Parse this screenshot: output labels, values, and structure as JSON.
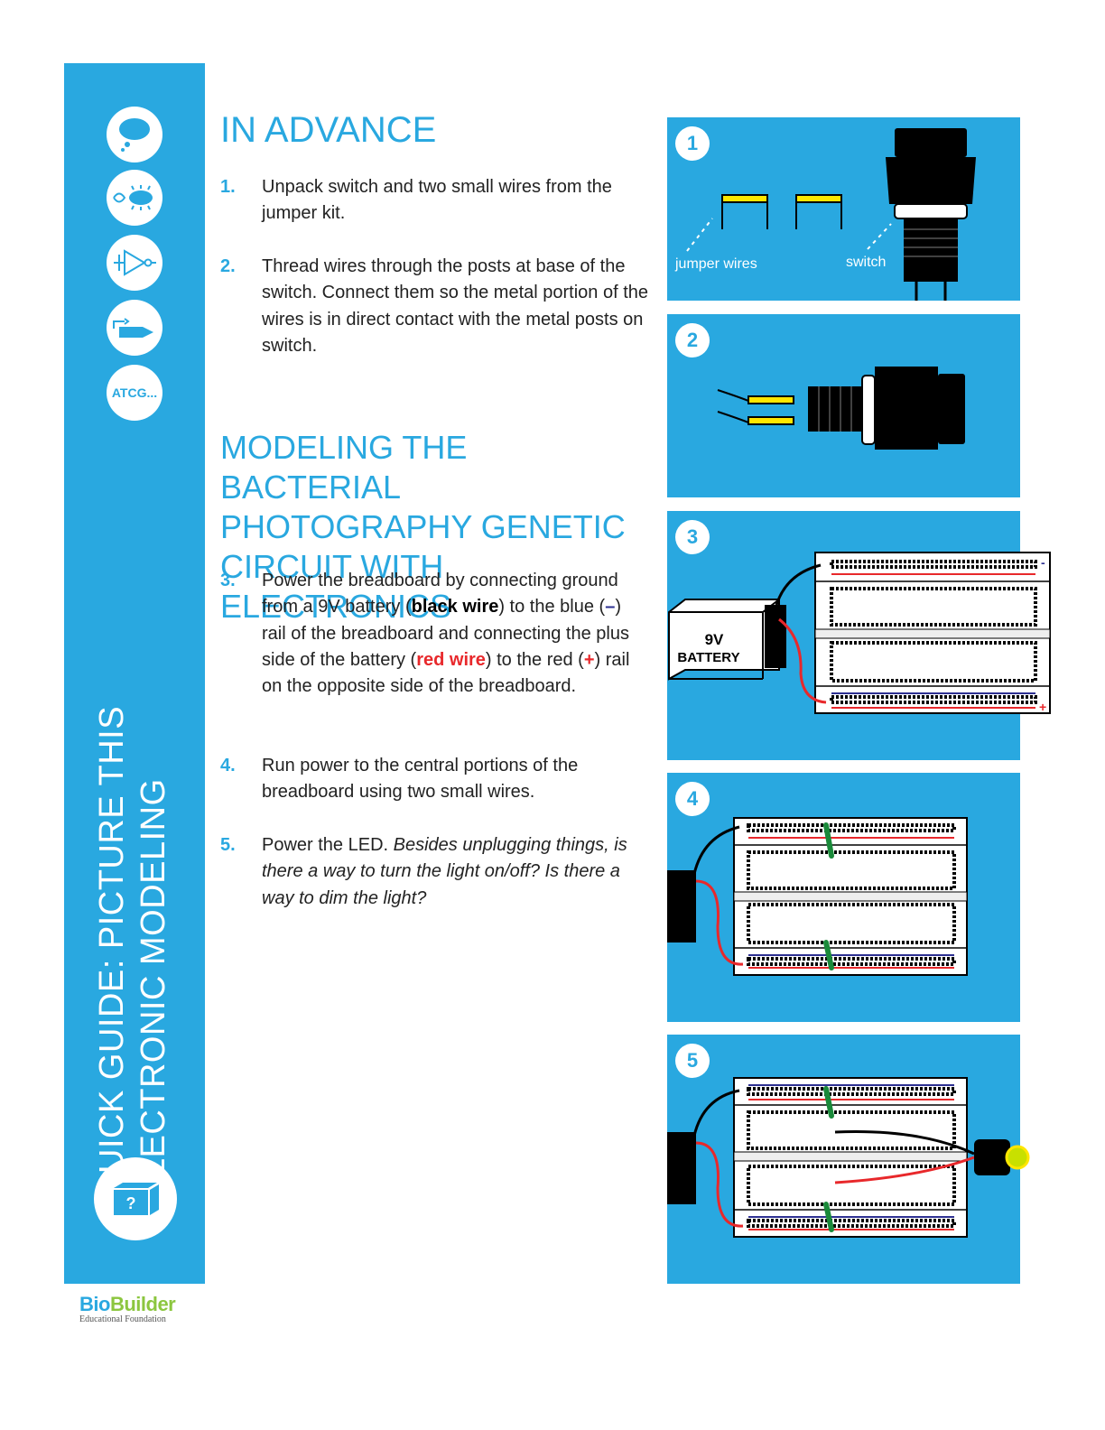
{
  "sidebar": {
    "title_line1": "QUICK GUIDE: PICTURE THIS",
    "title_line2": "ELECTRONIC MODELING",
    "atcg_label": "ATCG...",
    "icons": [
      "thought-bubble-icon",
      "bacteria-icon",
      "logic-gate-icon",
      "plug-icon",
      "atcg-icon",
      "mystery-box-icon"
    ],
    "mystery_box_mark": "?"
  },
  "logo": {
    "name_part1": "Bio",
    "name_part2": "Builder",
    "subtitle": "Educational Foundation"
  },
  "section1": {
    "heading": "IN ADVANCE",
    "steps": [
      {
        "num": "1.",
        "text": " Unpack switch and two small wires from the jumper kit."
      },
      {
        "num": "2.",
        "text": "Thread wires through the posts at base of the switch. Connect them so the metal portion of the wires is in direct contact with the metal posts on switch."
      }
    ]
  },
  "section2": {
    "heading": "MODELING THE BACTERIAL PHOTOGRAPHY GENETIC CIRCUIT WITH ELECTRONICS",
    "step3": {
      "num": "3.",
      "t1": "Power the breadboard by connecting ground from a 9V battery (",
      "black_wire": "black wire",
      "t2": ") to the blue (",
      "minus": "–",
      "t3": ") rail of the breadboard and connecting the plus side of the battery (",
      "red_wire": "red wire",
      "t4": ") to the red (",
      "plus": "+",
      "t5": ") rail on the opposite side of the breadboard."
    },
    "step4": {
      "num": "4.",
      "text": "Run power to the central portions of the breadboard using two small wires."
    },
    "step5": {
      "num": "5.",
      "text": "Power the LED. ",
      "italic": "Besides unplugging things, is there a way to turn the light on/off? Is there a way to dim the light?"
    }
  },
  "panels": {
    "p1": {
      "num": "1",
      "label_wires": "jumper wires",
      "label_switch": "switch"
    },
    "p2": {
      "num": "2"
    },
    "p3": {
      "num": "3",
      "battery_line1": "9V",
      "battery_line2": "BATTERY"
    },
    "p4": {
      "num": "4"
    },
    "p5": {
      "num": "5"
    }
  },
  "colors": {
    "brand_blue": "#29a8e0",
    "red": "#e8282b",
    "navy": "#2e3192",
    "green": "#8cc63f"
  }
}
